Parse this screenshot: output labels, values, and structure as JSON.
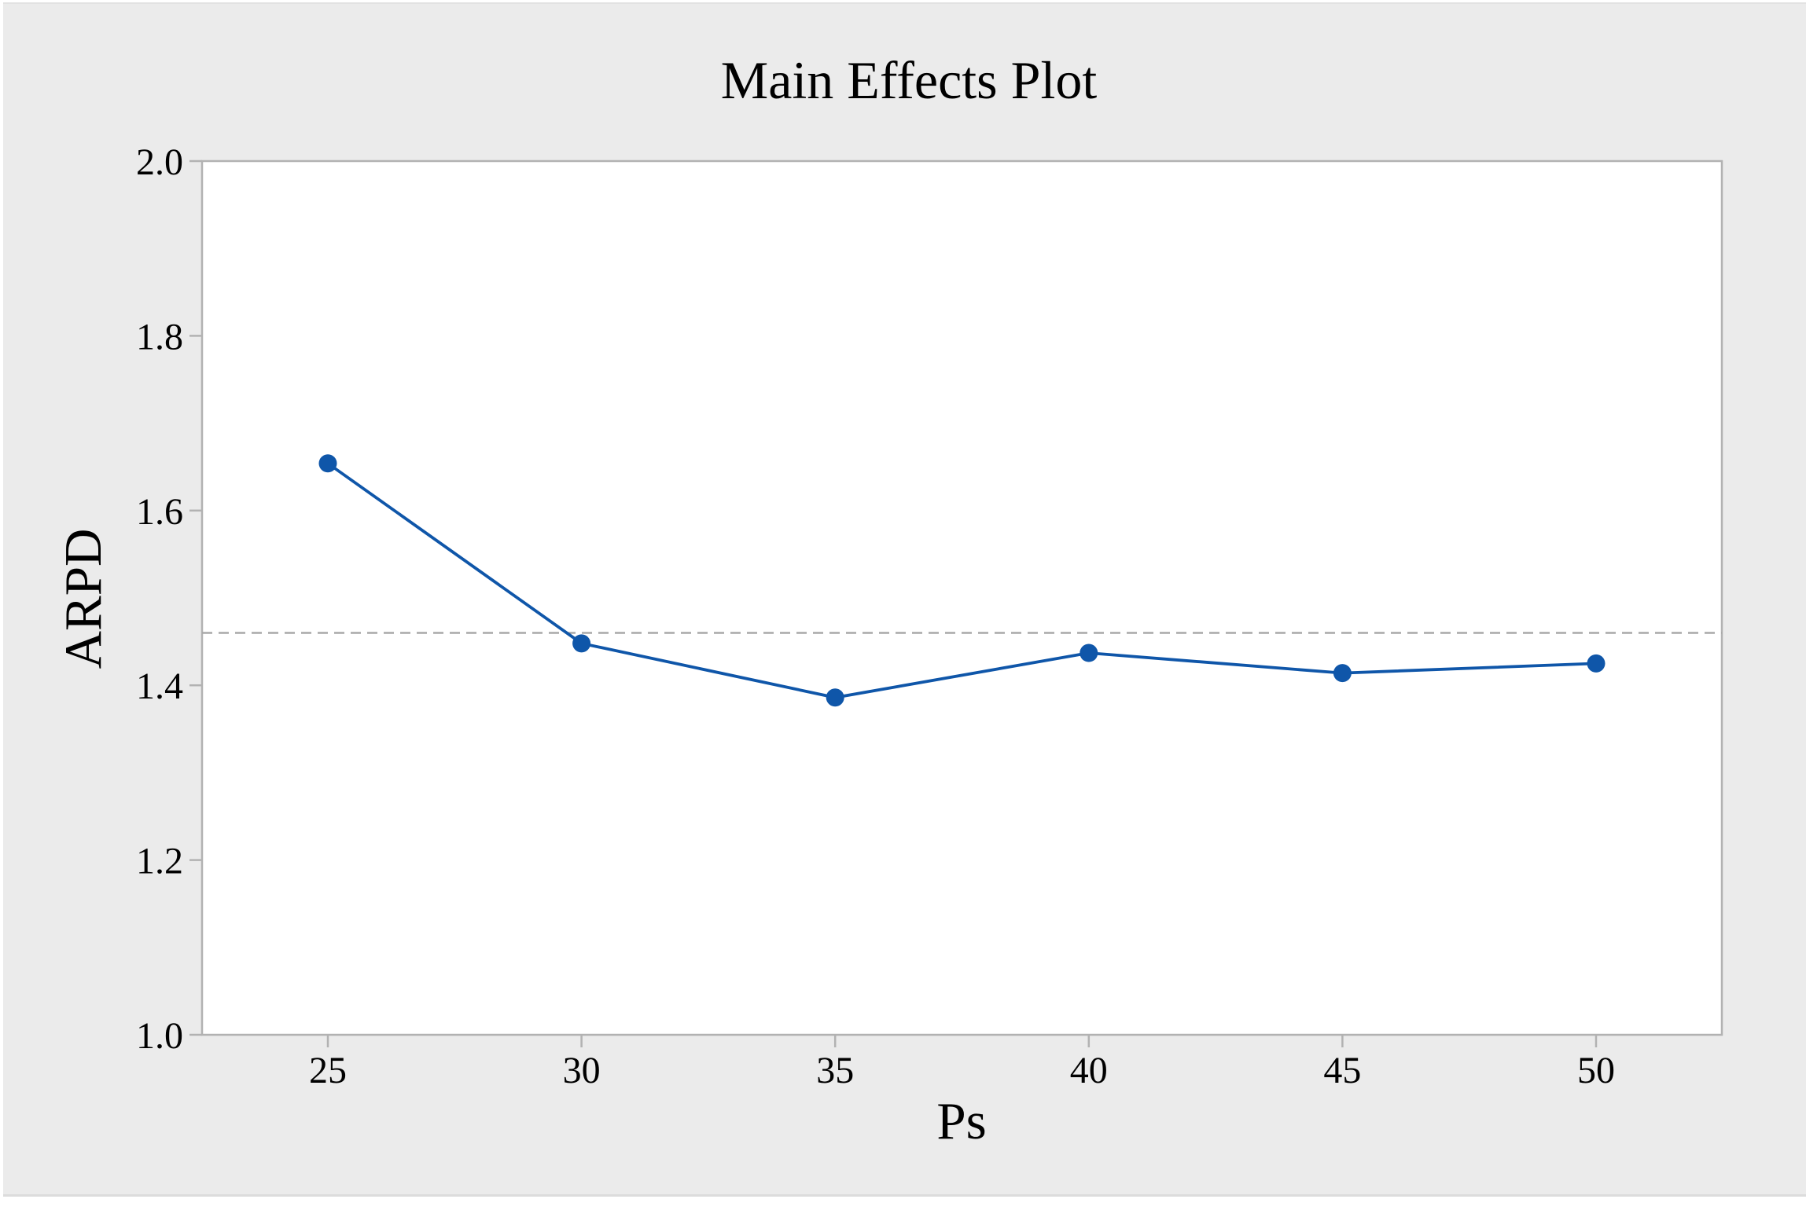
{
  "chart_data": {
    "type": "line",
    "title": "Main Effects Plot",
    "xlabel": "Ps",
    "ylabel": "ARPD",
    "x": [
      25,
      30,
      35,
      40,
      45,
      50
    ],
    "xtick_labels": [
      "25",
      "30",
      "35",
      "40",
      "45",
      "50"
    ],
    "yticks": [
      1.0,
      1.2,
      1.4,
      1.6,
      1.8,
      2.0
    ],
    "ytick_labels": [
      "1.0",
      "1.2",
      "1.4",
      "1.6",
      "1.8",
      "2.0"
    ],
    "ylim": [
      1.0,
      2.0
    ],
    "xlim_padding_note": "ticks evenly spaced, equal padding each side",
    "series": [
      {
        "name": "ARPD",
        "values": [
          1.654,
          1.448,
          1.386,
          1.437,
          1.414,
          1.425
        ],
        "color": "#0f56a9",
        "marker": "circle"
      }
    ],
    "reference_line": {
      "value": 1.46,
      "style": "dashed",
      "color": "#a8a8a8"
    },
    "grid": false,
    "legend": false,
    "colors": {
      "panel_background": "#ebebeb",
      "plot_background": "#ffffff",
      "frame": "#b2b2b2",
      "text": "#000000"
    }
  }
}
